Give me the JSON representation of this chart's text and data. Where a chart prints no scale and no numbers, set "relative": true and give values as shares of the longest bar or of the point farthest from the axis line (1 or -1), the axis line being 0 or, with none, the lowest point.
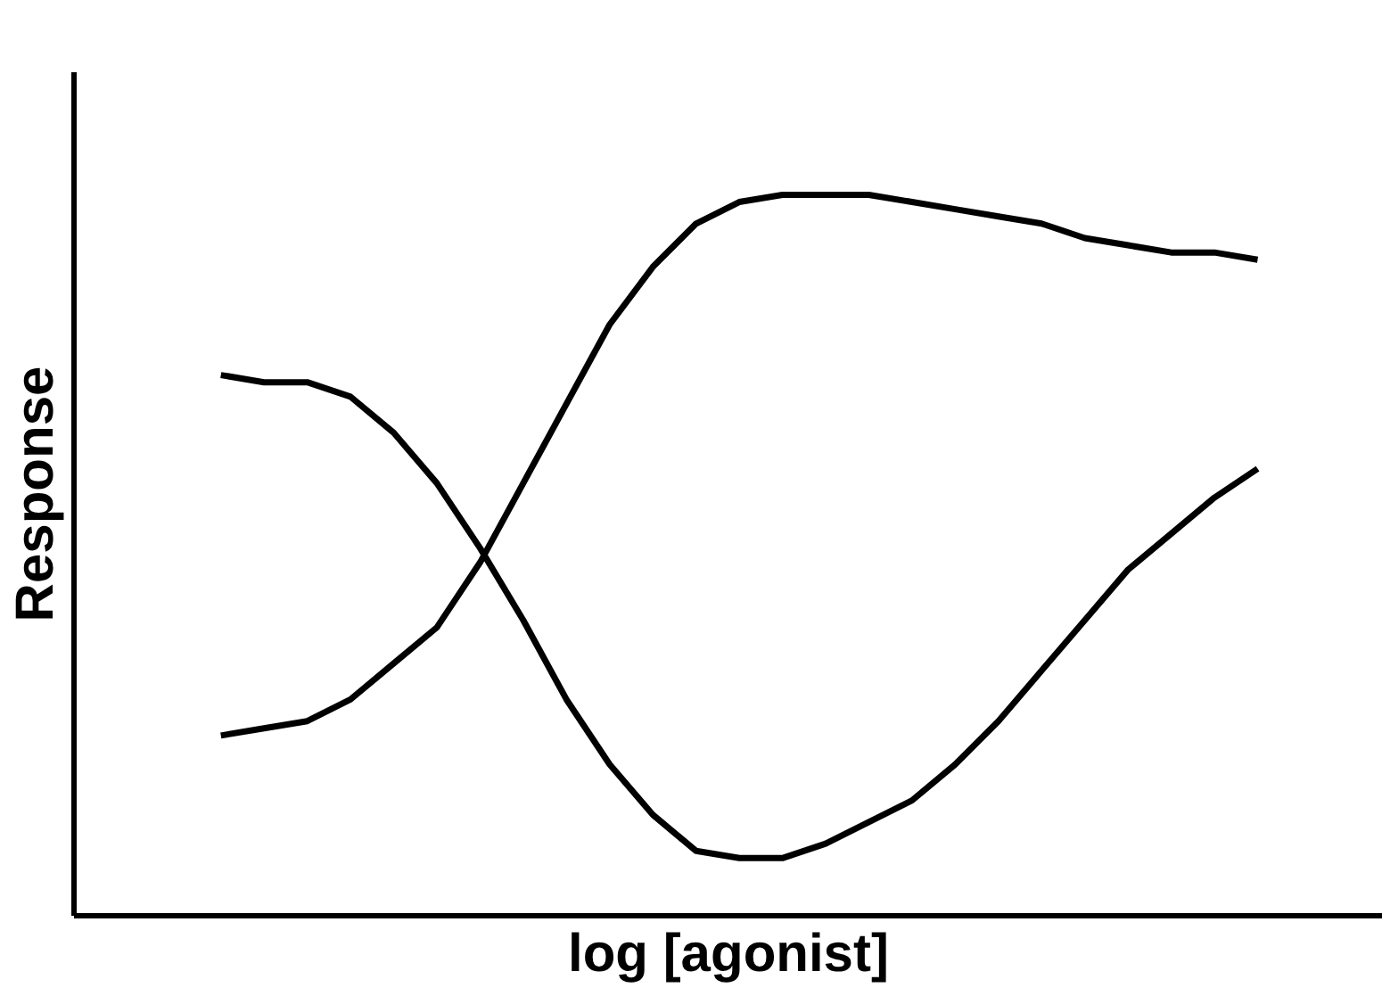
{
  "chart_data": {
    "type": "line",
    "relative": true,
    "xlabel": "log [agonist]",
    "ylabel": "Response",
    "categories": [
      null,
      null,
      null,
      null,
      null,
      null,
      null,
      null,
      null,
      null,
      null,
      null,
      null,
      null,
      null,
      null,
      null,
      null,
      null,
      null,
      null,
      null,
      null,
      null,
      null
    ],
    "series": [
      {
        "color": "#000000",
        "values": [
          0.25,
          0.26,
          0.27,
          0.3,
          0.35,
          0.4,
          0.49,
          0.6,
          0.71,
          0.82,
          0.9,
          0.96,
          0.99,
          1.0,
          1.0,
          1.0,
          0.99,
          0.98,
          0.97,
          0.96,
          0.94,
          0.93,
          0.92,
          0.92,
          0.91
        ]
      },
      {
        "color": "#000000",
        "values": [
          0.75,
          0.74,
          0.74,
          0.72,
          0.67,
          0.6,
          0.51,
          0.41,
          0.3,
          0.21,
          0.14,
          0.09,
          0.08,
          0.08,
          0.1,
          0.13,
          0.16,
          0.21,
          0.27,
          0.34,
          0.41,
          0.48,
          0.53,
          0.58,
          0.62
        ]
      }
    ]
  }
}
